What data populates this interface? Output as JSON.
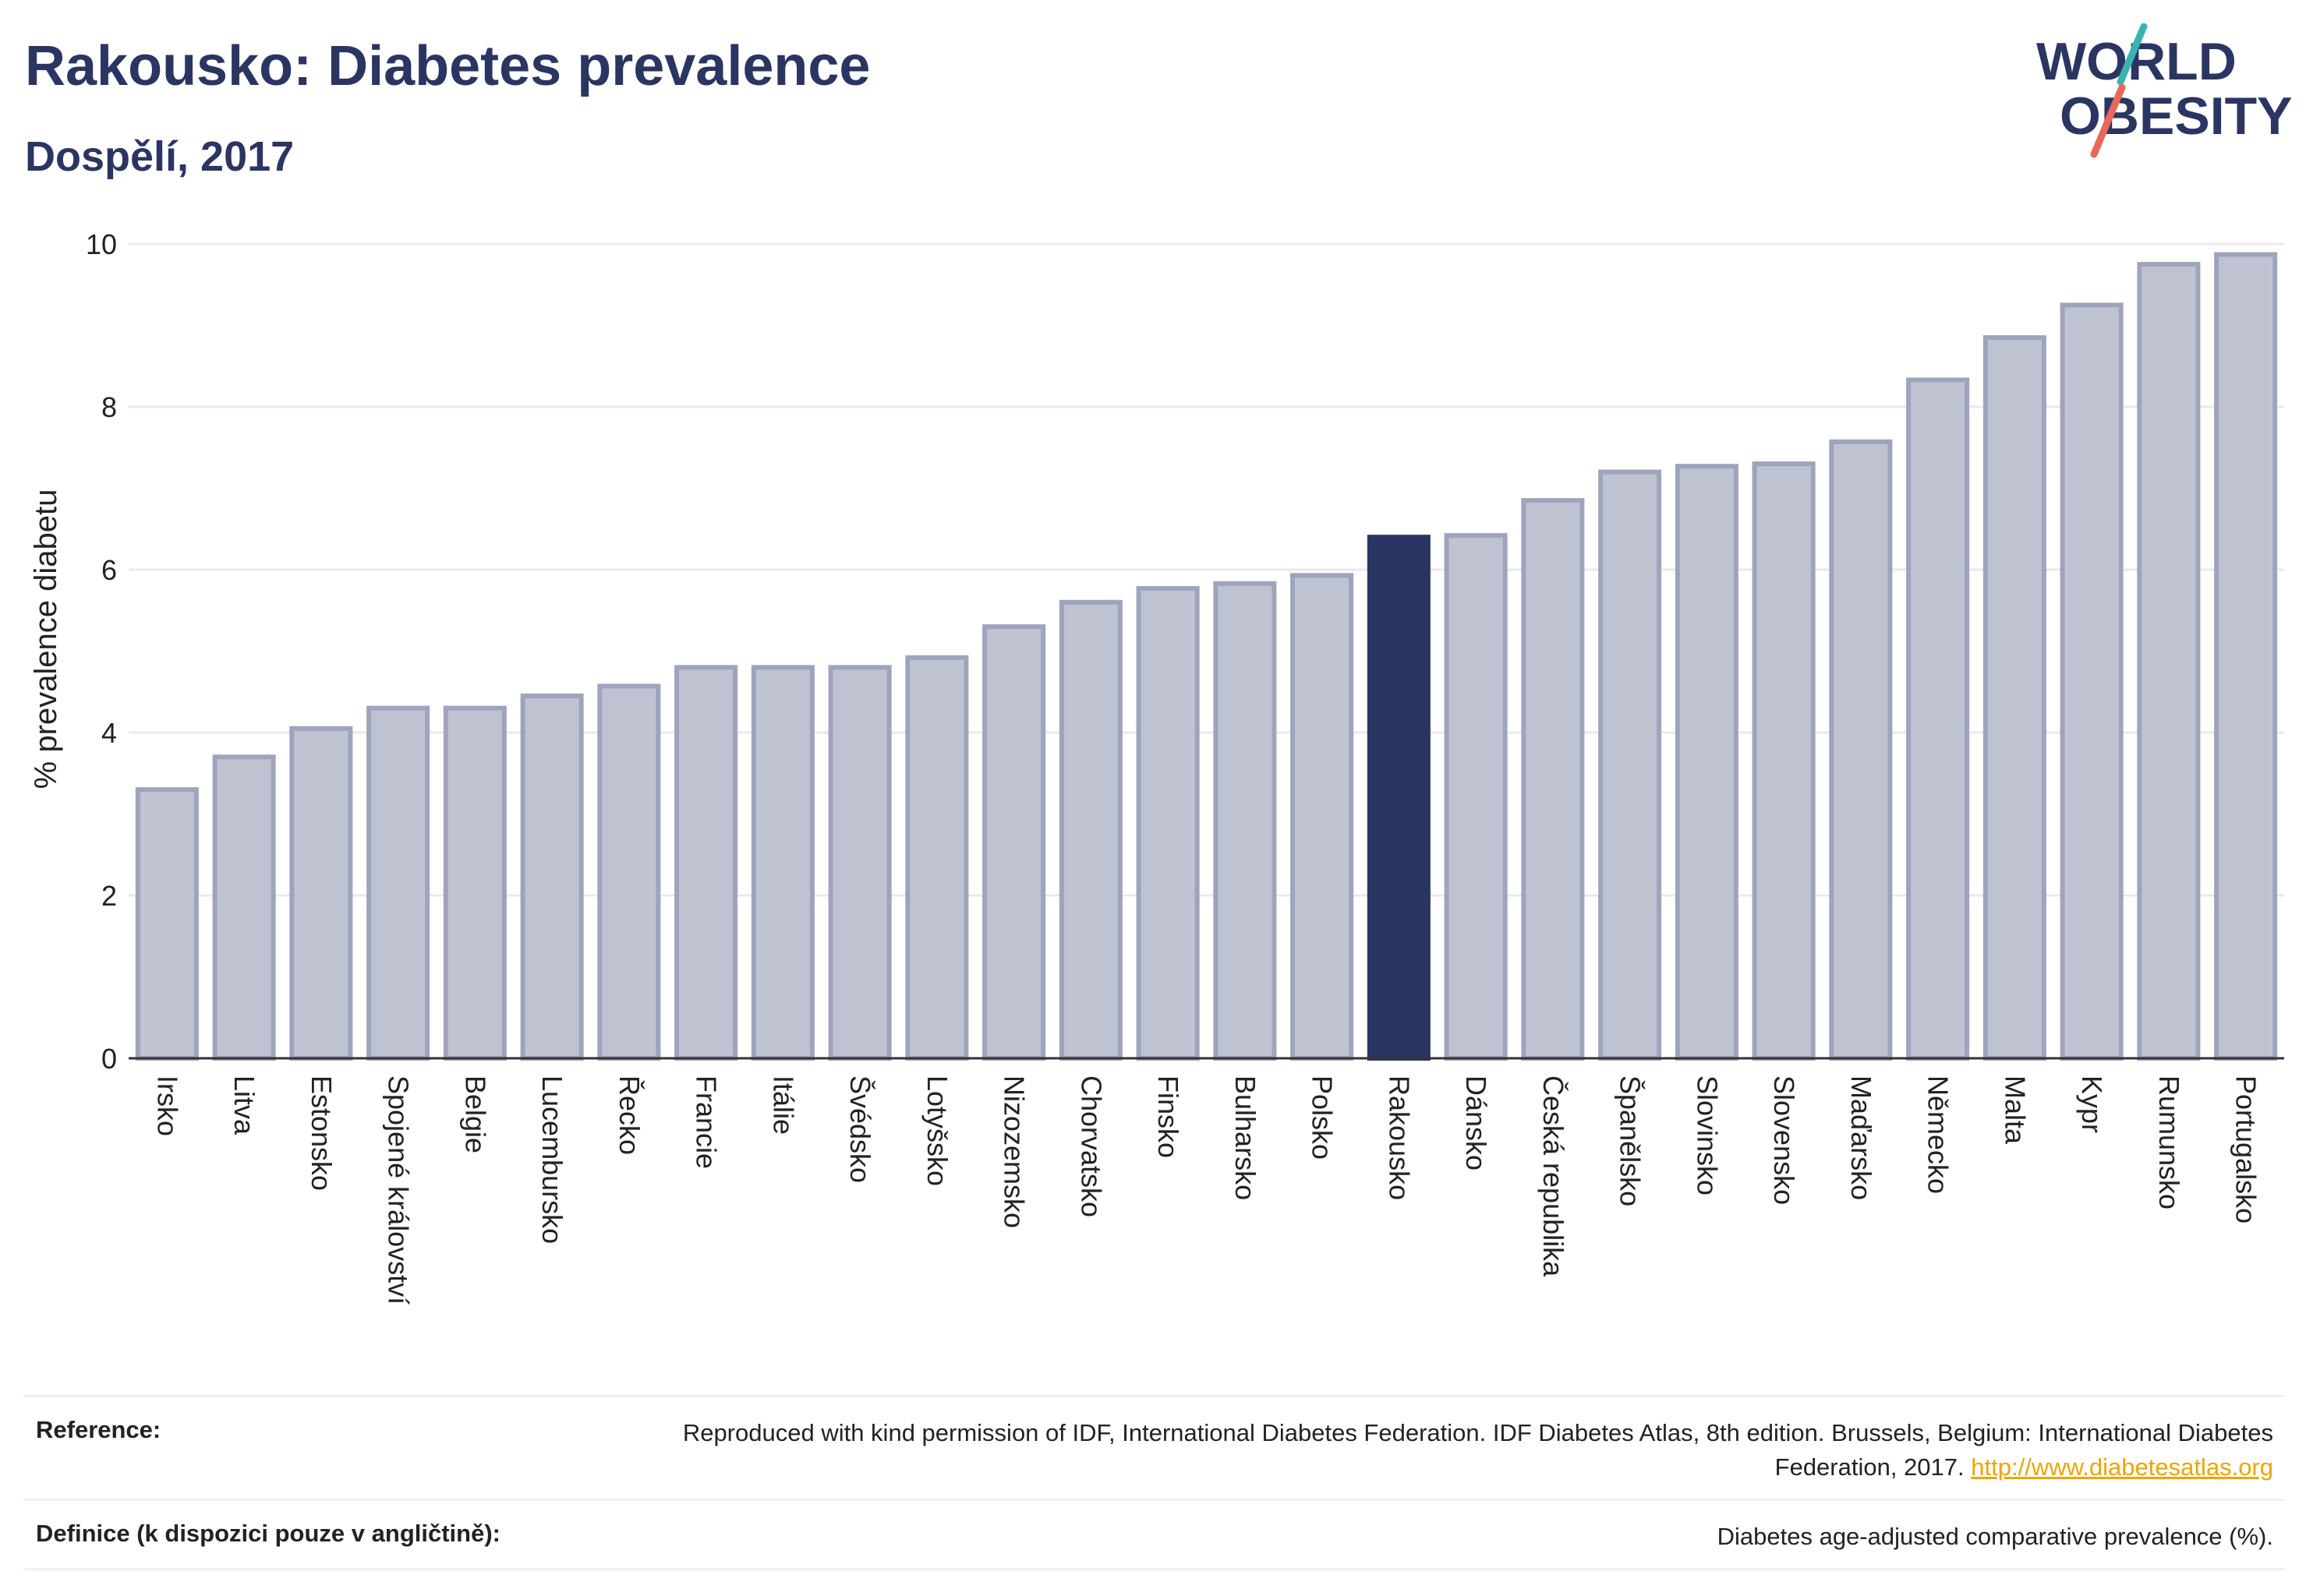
{
  "header": {
    "title": "Rakousko: Diabetes prevalence",
    "subtitle": "Dospělí, 2017"
  },
  "logo": {
    "line1": "WORLD",
    "line2": "OBESITY",
    "colors": {
      "text": "#2b3562",
      "slash_teal": "#3bb3b0",
      "slash_red": "#e8685a"
    }
  },
  "chart_data": {
    "type": "bar",
    "title": "Rakousko: Diabetes prevalence",
    "subtitle": "Dospělí, 2017",
    "ylabel": "% prevalence diabetu",
    "xlabel": "",
    "ylim": [
      0,
      10
    ],
    "yticks": [
      0,
      2,
      4,
      6,
      8,
      10
    ],
    "grid": true,
    "highlight": "Rakousko",
    "colors": {
      "bar": "#bfc3d1",
      "bar_border": "#9ea4bc",
      "highlight": "#2b3562"
    },
    "categories": [
      "Irsko",
      "Litva",
      "Estonsko",
      "Spojené království",
      "Belgie",
      "Lucembursko",
      "Řecko",
      "Francie",
      "Itálie",
      "Švédsko",
      "Lotyšsko",
      "Nizozemsko",
      "Chorvatsko",
      "Finsko",
      "Bulharsko",
      "Polsko",
      "Rakousko",
      "Dánsko",
      "Česká republika",
      "Španělsko",
      "Slovinsko",
      "Slovensko",
      "Maďarsko",
      "Německo",
      "Malta",
      "Kypr",
      "Rumunsko",
      "Portugalsko"
    ],
    "values": [
      3.3,
      3.7,
      4.05,
      4.3,
      4.3,
      4.45,
      4.57,
      4.8,
      4.8,
      4.8,
      4.92,
      5.3,
      5.6,
      5.77,
      5.83,
      5.93,
      6.4,
      6.42,
      6.85,
      7.2,
      7.27,
      7.3,
      7.57,
      8.33,
      8.85,
      9.25,
      9.75,
      9.87
    ]
  },
  "footer": {
    "reference_label": "Reference:",
    "reference_text": "Reproduced with kind permission of IDF, International Diabetes Federation. IDF Diabetes Atlas, 8th edition. Brussels, Belgium: International Diabetes Federation, 2017.",
    "reference_link": "http://www.diabetesatlas.org",
    "definition_label": "Definice (k dispozici pouze v angličtině):",
    "definition_text": "Diabetes age-adjusted comparative prevalence (%)."
  }
}
